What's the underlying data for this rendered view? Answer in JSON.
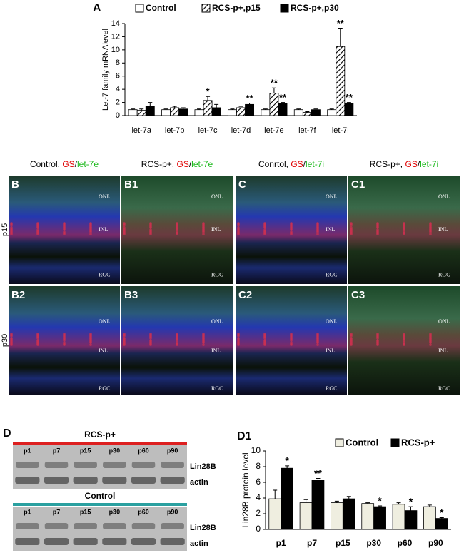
{
  "chart_data": [
    {
      "type": "bar",
      "panel": "A",
      "ylabel": "Let-7 family mRNAlevel",
      "categories": [
        "let-7a",
        "let-7b",
        "let-7c",
        "let-7d",
        "let-7e",
        "let-7f",
        "let-7i"
      ],
      "ylim": [
        0,
        14
      ],
      "yticks": [
        0,
        2,
        4,
        6,
        8,
        10,
        12,
        14
      ],
      "series": [
        {
          "name": "Control",
          "color": "#ffffff",
          "values": [
            0.9,
            0.9,
            0.9,
            0.9,
            0.9,
            0.9,
            0.9
          ],
          "errors": [
            0.1,
            0.1,
            0.1,
            0.1,
            0.1,
            0.1,
            0.1
          ],
          "significance": [
            null,
            null,
            null,
            null,
            null,
            null,
            null
          ]
        },
        {
          "name": "RCS-p+,p15",
          "color": "#000000",
          "pattern": "hatch",
          "values": [
            0.8,
            1.2,
            2.3,
            1.2,
            3.4,
            0.5,
            10.5
          ],
          "errors": [
            0.2,
            0.2,
            0.6,
            0.2,
            0.8,
            0.1,
            2.8
          ],
          "significance": [
            null,
            null,
            "*",
            null,
            "**",
            null,
            "**"
          ]
        },
        {
          "name": "RCS-p+,p30",
          "color": "#000000",
          "values": [
            1.4,
            1.0,
            1.2,
            1.7,
            1.8,
            0.9,
            1.8
          ],
          "errors": [
            0.6,
            0.2,
            0.5,
            0.2,
            0.2,
            0.1,
            0.2
          ],
          "significance": [
            null,
            null,
            null,
            "**",
            "**",
            null,
            "**"
          ]
        }
      ]
    },
    {
      "type": "bar",
      "panel": "D1",
      "ylabel": "Lin28B protein level",
      "categories": [
        "p1",
        "p7",
        "p15",
        "p30",
        "p60",
        "p90"
      ],
      "ylim": [
        0,
        10
      ],
      "yticks": [
        0,
        2,
        4,
        6,
        8,
        10
      ],
      "series": [
        {
          "name": "Control",
          "color": "#efeee0",
          "values": [
            3.9,
            3.4,
            3.4,
            3.3,
            3.2,
            2.9
          ],
          "errors": [
            1.1,
            0.4,
            0.2,
            0.1,
            0.2,
            0.2
          ],
          "significance": [
            null,
            null,
            null,
            null,
            null,
            null
          ]
        },
        {
          "name": "RCS-p+",
          "color": "#000000",
          "values": [
            7.8,
            6.3,
            3.9,
            2.9,
            2.4,
            1.4
          ],
          "errors": [
            0.3,
            0.2,
            0.3,
            0.1,
            0.5,
            0.1
          ],
          "significance": [
            "*",
            "**",
            null,
            "*",
            "*",
            "*"
          ]
        }
      ]
    }
  ],
  "micrographs": {
    "columns": [
      {
        "prefix": "Control, ",
        "marker": "GS",
        "sep": "/",
        "target": "let-7e"
      },
      {
        "prefix": "RCS-p+, ",
        "marker": "GS",
        "sep": "/",
        "target": "let-7e"
      },
      {
        "prefix": "Conrtol, ",
        "marker": "GS",
        "sep": "/",
        "target": "let-7i"
      },
      {
        "prefix": "RCS-p+, ",
        "marker": "GS",
        "sep": "/",
        "target": "let-7i"
      }
    ],
    "rows": [
      {
        "label": "p15",
        "panels": [
          "B",
          "B1",
          "C",
          "C1"
        ]
      },
      {
        "label": "p30",
        "panels": [
          "B2",
          "B3",
          "C2",
          "C3"
        ]
      }
    ],
    "layers": [
      "ONL",
      "INL",
      "RGC"
    ]
  },
  "blot": {
    "panel": "D",
    "groups": [
      "RCS-p+",
      "Control"
    ],
    "lanes": [
      "p1",
      "p7",
      "p15",
      "p30",
      "p60",
      "p90"
    ],
    "bands": [
      "Lin28B",
      "actin"
    ]
  }
}
